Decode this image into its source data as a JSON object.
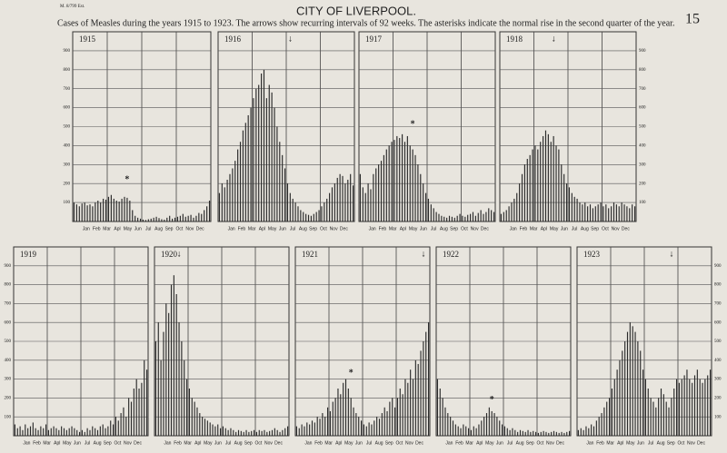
{
  "header": {
    "code": "M. 8/799 Est.",
    "heading": "CITY OF LIVERPOOL.",
    "caption": "Cases of Measles during the years 1915 to 1923.  The arrows show recurring intervals of 92 weeks.  The asterisks indicate the normal rise in the second quarter of the year.",
    "page_number": "15"
  },
  "chart_data": [
    {
      "type": "bar",
      "title": "1915",
      "months": [
        "Jan",
        "Feb",
        "Mar",
        "Apl",
        "May",
        "Jun",
        "Jul",
        "Aug",
        "Sep",
        "Oct",
        "Nov",
        "Dec"
      ],
      "ylim": [
        0,
        1000
      ],
      "yticks": [
        100,
        200,
        300,
        400,
        500,
        600,
        700,
        800,
        900
      ],
      "tick_side": "left",
      "color": "#2a2a2a",
      "values": [
        100,
        90,
        80,
        95,
        100,
        85,
        90,
        80,
        100,
        110,
        100,
        120,
        115,
        130,
        140,
        120,
        110,
        105,
        120,
        130,
        125,
        110,
        60,
        30,
        20,
        15,
        10,
        8,
        12,
        15,
        20,
        25,
        18,
        12,
        10,
        20,
        30,
        15,
        20,
        25,
        30,
        40,
        25,
        30,
        35,
        20,
        30,
        45,
        40,
        60,
        80,
        110
      ],
      "annotations": [
        {
          "text": "*",
          "x": 20,
          "y": 220
        }
      ]
    },
    {
      "type": "bar",
      "title": "1916",
      "months": [
        "Jan",
        "Feb",
        "Mar",
        "Apl",
        "May",
        "Jun",
        "Jul",
        "Aug",
        "Sep",
        "Oct",
        "Nov",
        "Dec"
      ],
      "ylim": [
        0,
        1000
      ],
      "yticks": [
        100,
        200,
        300,
        400,
        500,
        600,
        700,
        800,
        900
      ],
      "tick_side": "none",
      "color": "#2a2a2a",
      "values": [
        150,
        200,
        180,
        220,
        250,
        280,
        320,
        380,
        420,
        480,
        520,
        560,
        600,
        650,
        700,
        720,
        780,
        800,
        650,
        720,
        680,
        600,
        500,
        420,
        350,
        280,
        200,
        150,
        120,
        100,
        80,
        60,
        50,
        40,
        35,
        30,
        40,
        50,
        60,
        80,
        100,
        120,
        150,
        180,
        200,
        230,
        250,
        240,
        200,
        220,
        250,
        190
      ],
      "annotations": [
        {
          "text": "↓",
          "x": 27,
          "y": 960
        }
      ]
    },
    {
      "type": "bar",
      "title": "1917",
      "months": [
        "Jan",
        "Feb",
        "Mar",
        "Apl",
        "May",
        "Jun",
        "Jul",
        "Aug",
        "Sep",
        "Oct",
        "Nov",
        "Dec"
      ],
      "ylim": [
        0,
        1000
      ],
      "yticks": [
        100,
        200,
        300,
        400,
        500,
        600,
        700,
        800,
        900
      ],
      "tick_side": "none",
      "color": "#2a2a2a",
      "values": [
        250,
        180,
        150,
        200,
        170,
        250,
        280,
        300,
        320,
        350,
        380,
        400,
        420,
        430,
        450,
        440,
        460,
        420,
        450,
        400,
        380,
        350,
        300,
        250,
        200,
        150,
        120,
        90,
        70,
        50,
        40,
        30,
        25,
        20,
        30,
        25,
        20,
        30,
        40,
        30,
        25,
        35,
        40,
        50,
        30,
        45,
        60,
        40,
        50,
        70,
        60,
        50
      ],
      "annotations": [
        {
          "text": "*",
          "x": 20,
          "y": 510
        }
      ]
    },
    {
      "type": "bar",
      "title": "1918",
      "months": [
        "Jan",
        "Feb",
        "Mar",
        "Apl",
        "May",
        "Jun",
        "Jul",
        "Aug",
        "Sep",
        "Oct",
        "Nov",
        "Dec"
      ],
      "ylim": [
        0,
        1000
      ],
      "yticks": [
        100,
        200,
        300,
        400,
        500,
        600,
        700,
        800,
        900
      ],
      "tick_side": "right",
      "color": "#2a2a2a",
      "values": [
        40,
        50,
        60,
        80,
        100,
        120,
        150,
        200,
        250,
        300,
        330,
        350,
        380,
        400,
        380,
        420,
        450,
        480,
        460,
        420,
        450,
        400,
        380,
        300,
        250,
        200,
        180,
        150,
        130,
        120,
        100,
        90,
        100,
        80,
        90,
        70,
        80,
        90,
        100,
        80,
        90,
        70,
        80,
        100,
        90,
        80,
        100,
        90,
        80,
        70,
        90,
        80
      ],
      "annotations": [
        {
          "text": "↓",
          "x": 20,
          "y": 960
        }
      ]
    },
    {
      "type": "bar",
      "title": "1919",
      "months": [
        "Jan",
        "Feb",
        "Mar",
        "Apl",
        "May",
        "Jun",
        "Jul",
        "Aug",
        "Sep",
        "Oct",
        "Nov",
        "Dec"
      ],
      "ylim": [
        0,
        1000
      ],
      "yticks": [
        100,
        200,
        300,
        400,
        500,
        600,
        700,
        800,
        900
      ],
      "tick_side": "left",
      "color": "#2a2a2a",
      "values": [
        60,
        40,
        50,
        30,
        60,
        40,
        50,
        70,
        40,
        30,
        50,
        40,
        60,
        30,
        40,
        50,
        40,
        30,
        50,
        40,
        30,
        40,
        50,
        40,
        30,
        20,
        30,
        20,
        40,
        30,
        50,
        40,
        30,
        50,
        60,
        40,
        50,
        80,
        60,
        100,
        80,
        120,
        150,
        100,
        200,
        180,
        250,
        300,
        250,
        280,
        400,
        350
      ],
      "annotations": []
    },
    {
      "type": "bar",
      "title": "1920",
      "months": [
        "Jan",
        "Feb",
        "Mar",
        "Apl",
        "May",
        "Jun",
        "Jul",
        "Aug",
        "Sep",
        "Oct",
        "Nov",
        "Dec"
      ],
      "ylim": [
        0,
        1000
      ],
      "yticks": [
        100,
        200,
        300,
        400,
        500,
        600,
        700,
        800,
        900
      ],
      "tick_side": "none",
      "color": "#2a2a2a",
      "values": [
        500,
        600,
        400,
        550,
        700,
        650,
        800,
        850,
        750,
        600,
        500,
        400,
        300,
        250,
        200,
        180,
        150,
        120,
        100,
        90,
        80,
        70,
        60,
        50,
        60,
        40,
        50,
        40,
        30,
        40,
        30,
        20,
        30,
        25,
        20,
        30,
        20,
        25,
        30,
        20,
        30,
        25,
        30,
        20,
        25,
        30,
        40,
        30,
        20,
        30,
        40,
        50
      ],
      "annotations": [
        {
          "text": "↓",
          "x": 9,
          "y": 960
        }
      ]
    },
    {
      "type": "bar",
      "title": "1921",
      "months": [
        "Jan",
        "Feb",
        "Mar",
        "Apl",
        "May",
        "Jun",
        "Jul",
        "Aug",
        "Sep",
        "Oct",
        "Nov",
        "Dec"
      ],
      "ylim": [
        0,
        1000
      ],
      "yticks": [
        100,
        200,
        300,
        400,
        500,
        600,
        700,
        800,
        900
      ],
      "tick_side": "none",
      "color": "#2a2a2a",
      "values": [
        50,
        40,
        60,
        50,
        70,
        60,
        80,
        70,
        100,
        90,
        120,
        100,
        150,
        130,
        180,
        200,
        250,
        220,
        280,
        300,
        250,
        200,
        150,
        120,
        100,
        80,
        60,
        50,
        70,
        60,
        80,
        100,
        90,
        120,
        150,
        130,
        180,
        200,
        150,
        200,
        250,
        220,
        300,
        280,
        350,
        300,
        400,
        380,
        450,
        500,
        550,
        600
      ],
      "annotations": [
        {
          "text": "*",
          "x": 21,
          "y": 330
        },
        {
          "text": "↓",
          "x": 49,
          "y": 960
        }
      ]
    },
    {
      "type": "bar",
      "title": "1922",
      "months": [
        "Jan",
        "Feb",
        "Mar",
        "Apl",
        "May",
        "Jun",
        "Jul",
        "Aug",
        "Sep",
        "Oct",
        "Nov",
        "Dec"
      ],
      "ylim": [
        0,
        1000
      ],
      "yticks": [
        100,
        200,
        300,
        400,
        500,
        600,
        700,
        800,
        900
      ],
      "tick_side": "none",
      "color": "#2a2a2a",
      "values": [
        300,
        250,
        200,
        150,
        120,
        100,
        80,
        60,
        50,
        40,
        60,
        50,
        40,
        30,
        50,
        40,
        60,
        80,
        100,
        120,
        150,
        130,
        120,
        100,
        80,
        60,
        50,
        40,
        30,
        40,
        30,
        20,
        30,
        25,
        20,
        30,
        20,
        25,
        20,
        15,
        20,
        25,
        20,
        15,
        20,
        25,
        20,
        15,
        20,
        15,
        20,
        25
      ],
      "annotations": [
        {
          "text": "*",
          "x": 21,
          "y": 190
        }
      ]
    },
    {
      "type": "bar",
      "title": "1923",
      "months": [
        "Jan",
        "Feb",
        "Mar",
        "Apl",
        "May",
        "Jun",
        "Jul",
        "Aug",
        "Sep",
        "Oct",
        "Nov",
        "Dec"
      ],
      "ylim": [
        0,
        1000
      ],
      "yticks": [
        100,
        200,
        300,
        400,
        500,
        600,
        700,
        800,
        900
      ],
      "tick_side": "right",
      "color": "#2a2a2a",
      "values": [
        30,
        40,
        30,
        50,
        40,
        60,
        50,
        80,
        100,
        120,
        150,
        180,
        200,
        250,
        300,
        350,
        400,
        450,
        500,
        550,
        600,
        580,
        550,
        500,
        450,
        350,
        300,
        250,
        200,
        180,
        150,
        200,
        250,
        220,
        180,
        150,
        200,
        250,
        300,
        280,
        300,
        320,
        350,
        300,
        280,
        320,
        350,
        300,
        280,
        300,
        320,
        350
      ],
      "annotations": [
        {
          "text": "↓",
          "x": 36,
          "y": 960
        }
      ]
    }
  ]
}
